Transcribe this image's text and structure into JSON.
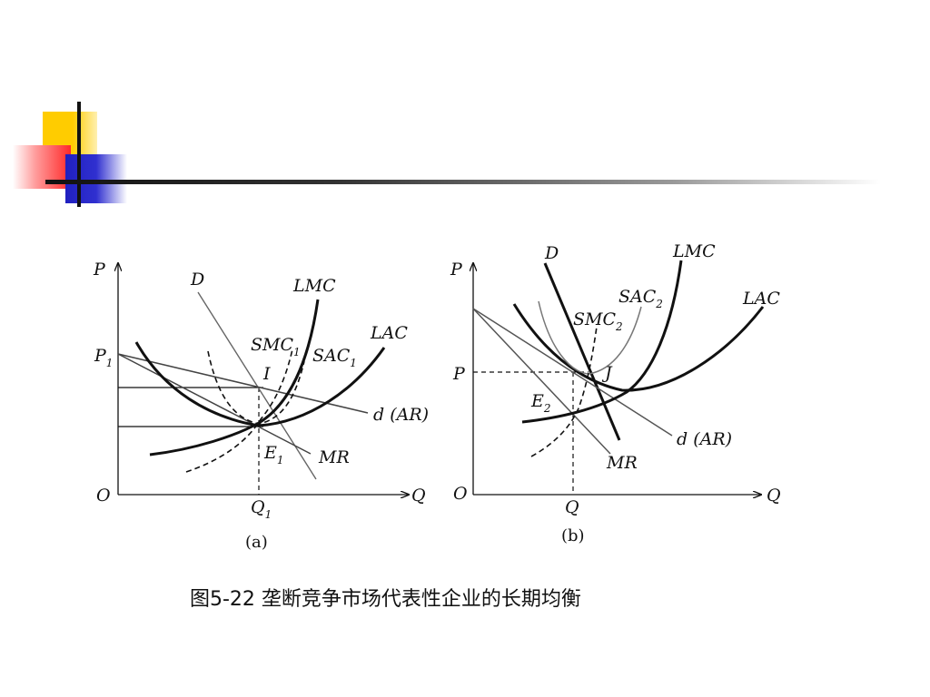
{
  "caption": "图5-22  垄断竞争市场代表性企业的长期均衡",
  "panel_a": {
    "label": "(a)",
    "axis_y": "P",
    "axis_x": "Q",
    "origin": "O",
    "price": "P",
    "price_sub": "1",
    "qty": "Q",
    "qty_sub": "1",
    "demand": "D",
    "lmc": "LMC",
    "lac": "LAC",
    "smc": "SMC",
    "smc_sub": "1",
    "sac": "SAC",
    "sac_sub": "1",
    "point_i": "I",
    "eq": "E",
    "eq_sub": "1",
    "d_ar": "d (AR)",
    "mr": "MR"
  },
  "panel_b": {
    "label": "(b)",
    "axis_y": "P",
    "axis_x": "Q",
    "origin": "O",
    "price": "P",
    "qty": "Q",
    "demand": "D",
    "lmc": "LMC",
    "lac": "LAC",
    "smc": "SMC",
    "smc_sub": "2",
    "sac": "SAC",
    "sac_sub": "2",
    "point_j": "J",
    "eq": "E",
    "eq_sub": "2",
    "d_ar": "d (AR)",
    "mr": "MR"
  }
}
